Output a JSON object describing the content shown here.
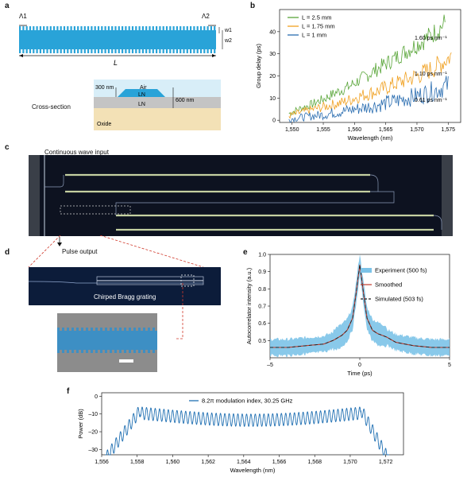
{
  "panels": {
    "a": "a",
    "b": "b",
    "c": "c",
    "d": "d",
    "e": "e",
    "f": "f"
  },
  "panel_a": {
    "lambda1": "Λ1",
    "lambda2": "Λ2",
    "w1": "w1",
    "w2": "w2",
    "length_label": "L",
    "cross_section_label": "Cross-section",
    "layers": {
      "air": "Air",
      "ln_top": "LN",
      "ln_bottom": "LN",
      "oxide": "Oxide"
    },
    "dim_300": "300 nm",
    "dim_600": "600 nm",
    "colors": {
      "grating": "#29a3d8",
      "air": "#d8eef8",
      "ln": "#c0c0c0",
      "oxide": "#f3e1b6",
      "ridge": "#29a3d8"
    }
  },
  "panel_c": {
    "cw_input": "Continuous wave input",
    "pulse_output": "Pulse output"
  },
  "panel_d": {
    "grating_label": "Chirped Bragg grating"
  },
  "chart_data": [
    {
      "id": "b",
      "type": "line",
      "xlabel": "Wavelength (nm)",
      "ylabel": "Group delay (ps)",
      "xlim": [
        1548,
        1577
      ],
      "ylim": [
        -1,
        50
      ],
      "xticks": [
        1550,
        1555,
        1560,
        1565,
        1570,
        1575
      ],
      "xtick_labels": [
        "1,550",
        "1,555",
        "1,560",
        "1,565",
        "1,570",
        "1,575"
      ],
      "yticks": [
        0,
        10,
        20,
        30,
        40
      ],
      "yticks_labels": [
        "0",
        "10",
        "20",
        "30",
        "40"
      ],
      "legend_position": "top-left",
      "series": [
        {
          "name": "L = 2.5 mm",
          "color": "#5aa63a",
          "x": [
            1549.5,
            1551,
            1553,
            1555,
            1557,
            1559,
            1561,
            1563,
            1565,
            1567,
            1569,
            1571,
            1573,
            1574.5
          ],
          "values": [
            3,
            5,
            7,
            9.5,
            12.5,
            15,
            18.5,
            22,
            25.5,
            29,
            32.5,
            36,
            40,
            44
          ],
          "annotation": "1.60 ps nm⁻¹"
        },
        {
          "name": "L = 1.75 mm",
          "color": "#f0a020",
          "x": [
            1549.5,
            1552,
            1555,
            1558,
            1561,
            1564,
            1567,
            1570,
            1573,
            1575.5
          ],
          "values": [
            2,
            4,
            6,
            8,
            11,
            13.5,
            17,
            20,
            24,
            29
          ],
          "annotation": "1.10 ps nm⁻¹"
        },
        {
          "name": "L = 1 mm",
          "color": "#2a6db0",
          "x": [
            1549.5,
            1552,
            1555,
            1558,
            1561,
            1564,
            1567,
            1570,
            1573,
            1575
          ],
          "values": [
            0.5,
            1.5,
            2.5,
            4,
            5.5,
            7,
            9,
            11,
            13.5,
            16
          ],
          "annotation": "0.61 ps nm⁻¹"
        }
      ]
    },
    {
      "id": "e",
      "type": "line",
      "xlabel": "Time (ps)",
      "ylabel": "Autocorrelator intensity (a.u.)",
      "xlim": [
        -5,
        5
      ],
      "ylim": [
        0.4,
        1.0
      ],
      "xticks": [
        -5,
        0,
        5
      ],
      "xtick_labels": [
        "–5",
        "0",
        "5"
      ],
      "yticks": [
        0.5,
        0.6,
        0.7,
        0.8,
        0.9,
        1.0
      ],
      "ytick_labels": [
        "0.5",
        "0.6",
        "0.7",
        "0.8",
        "0.9",
        "1.0"
      ],
      "legend_position": "top-right",
      "series": [
        {
          "name": "Experiment (500 fs)",
          "color": "#7cc3e8",
          "style": "band"
        },
        {
          "name": "Smoothed",
          "color": "#c0392b",
          "style": "solid"
        },
        {
          "name": "Simulated (503 fs)",
          "color": "#222222",
          "style": "dashed"
        }
      ],
      "profile": {
        "x": [
          -5,
          -4,
          -3,
          -2,
          -1.5,
          -1,
          -0.7,
          -0.4,
          -0.2,
          0,
          0.2,
          0.4,
          0.7,
          1,
          1.5,
          2,
          3,
          4,
          5
        ],
        "values": [
          0.46,
          0.46,
          0.47,
          0.48,
          0.5,
          0.53,
          0.56,
          0.63,
          0.78,
          0.94,
          0.78,
          0.63,
          0.56,
          0.54,
          0.52,
          0.49,
          0.47,
          0.46,
          0.46
        ]
      }
    },
    {
      "id": "f",
      "type": "line",
      "xlabel": "Wavelength (nm)",
      "ylabel": "Power (dB)",
      "xlim": [
        1556,
        1573
      ],
      "ylim": [
        -33,
        2
      ],
      "xticks": [
        1556,
        1558,
        1560,
        1562,
        1564,
        1566,
        1568,
        1570,
        1572
      ],
      "xtick_labels": [
        "1,556",
        "1,558",
        "1,560",
        "1,562",
        "1,564",
        "1,566",
        "1,568",
        "1,570",
        "1,572"
      ],
      "yticks": [
        0,
        -10,
        -20,
        -30
      ],
      "ytick_labels": [
        "0",
        "–10",
        "–20",
        "–30"
      ],
      "legend_position": "top-center",
      "series": [
        {
          "name": "8.2π modulation index, 30.25 GHz",
          "color": "#1f6fb2"
        }
      ]
    }
  ]
}
